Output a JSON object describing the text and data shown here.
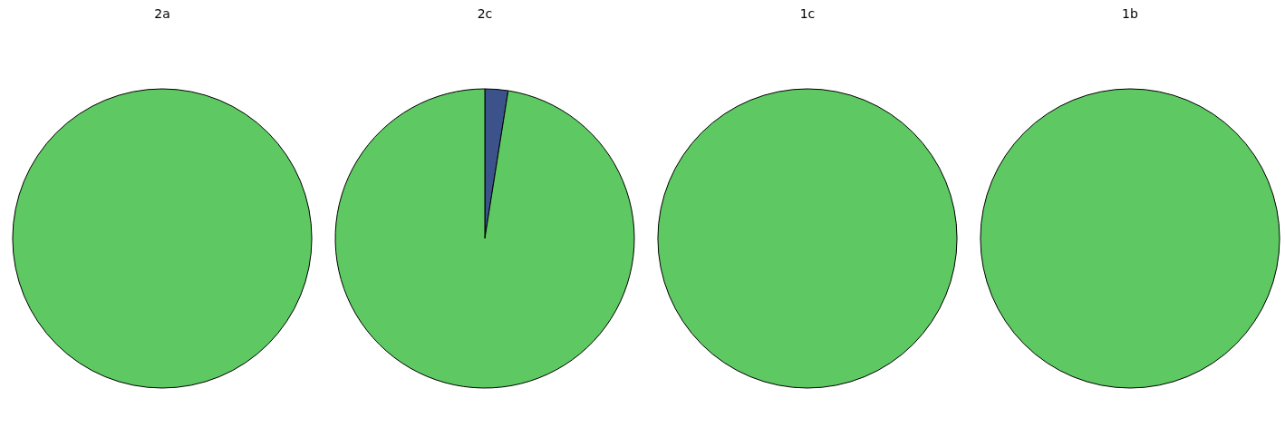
{
  "chart_data": [
    {
      "type": "pie",
      "title": "2a",
      "categories": [
        null
      ],
      "values": [
        100
      ],
      "colors": [
        "#5ec962"
      ]
    },
    {
      "type": "pie",
      "title": "2c",
      "categories": [
        null,
        null
      ],
      "values": [
        2.5,
        97.5
      ],
      "colors": [
        "#3b528b",
        "#5ec962"
      ]
    },
    {
      "type": "pie",
      "title": "1c",
      "categories": [
        null
      ],
      "values": [
        100
      ],
      "colors": [
        "#5ec962"
      ]
    },
    {
      "type": "pie",
      "title": "1b",
      "categories": [
        null
      ],
      "values": [
        100
      ],
      "colors": [
        "#5ec962"
      ]
    }
  ]
}
